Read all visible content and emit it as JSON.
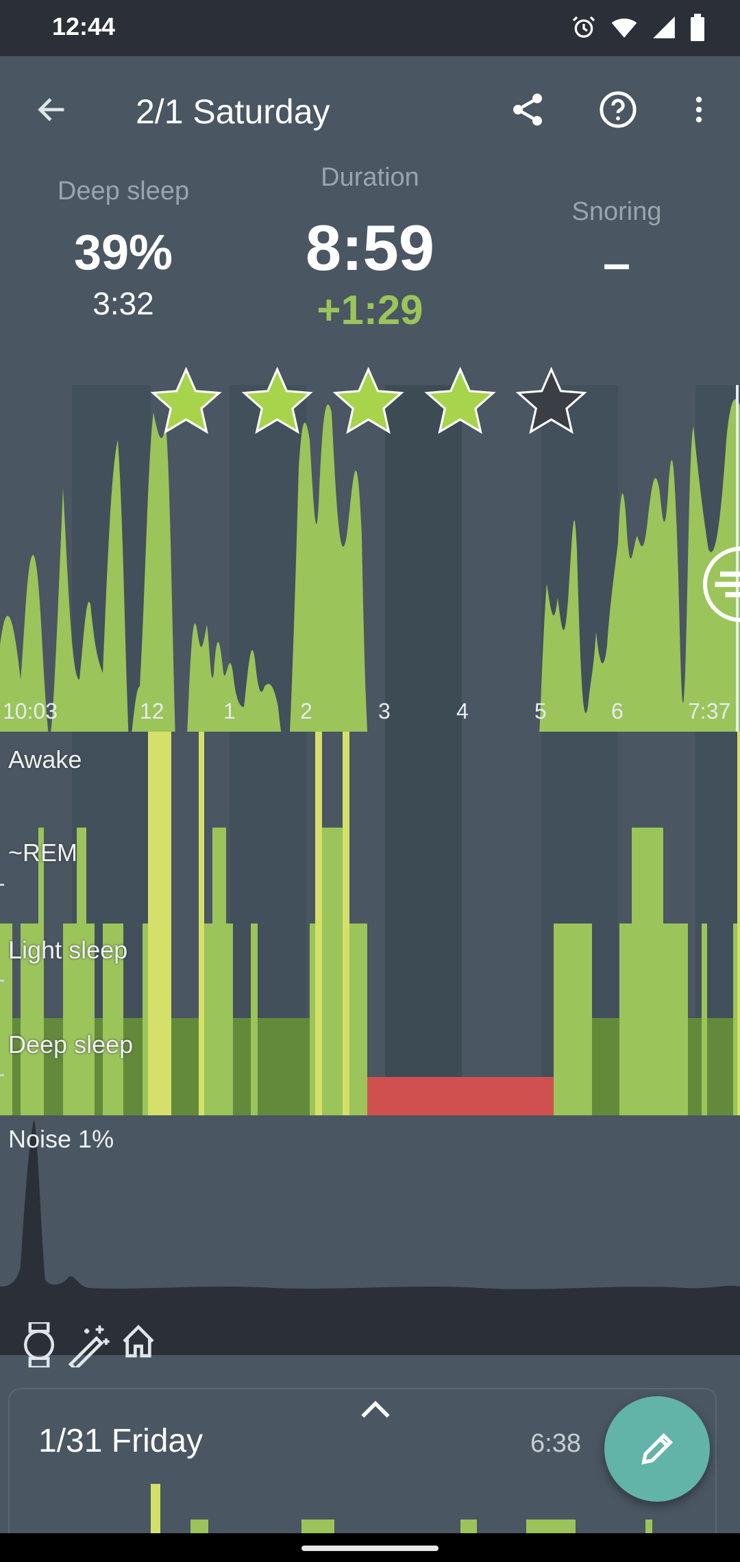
{
  "status_bar": {
    "time": "12:44"
  },
  "header": {
    "title": "2/1 Saturday"
  },
  "stats": {
    "deep_sleep_label": "Deep sleep",
    "deep_sleep_percent": "39%",
    "deep_sleep_time": "3:32",
    "duration_label": "Duration",
    "duration_value": "8:59",
    "duration_delta": "+1:29",
    "snoring_label": "Snoring",
    "snoring_value": "–"
  },
  "rating": {
    "value": 4,
    "max": 5
  },
  "chart_data": [
    {
      "type": "area",
      "title": "",
      "x_tick_labels": [
        "10:03",
        "12",
        "1",
        "2",
        "3",
        "4",
        "5",
        "6",
        "7:37"
      ],
      "note": "",
      "color": "#9bc45a"
    }
  ],
  "hypnogram": {
    "labels": [
      "Awake",
      "~REM",
      "Light sleep",
      "Deep sleep"
    ],
    "colors": {
      "awake": "#d4e06a",
      "rem": "#9bc45a",
      "light": "#9bc45a",
      "deep": "#638a3b",
      "gap": "#d05050"
    }
  },
  "noise": {
    "label": "Noise 1%"
  },
  "previous_card": {
    "date": "1/31 Friday",
    "duration": "6:38"
  }
}
